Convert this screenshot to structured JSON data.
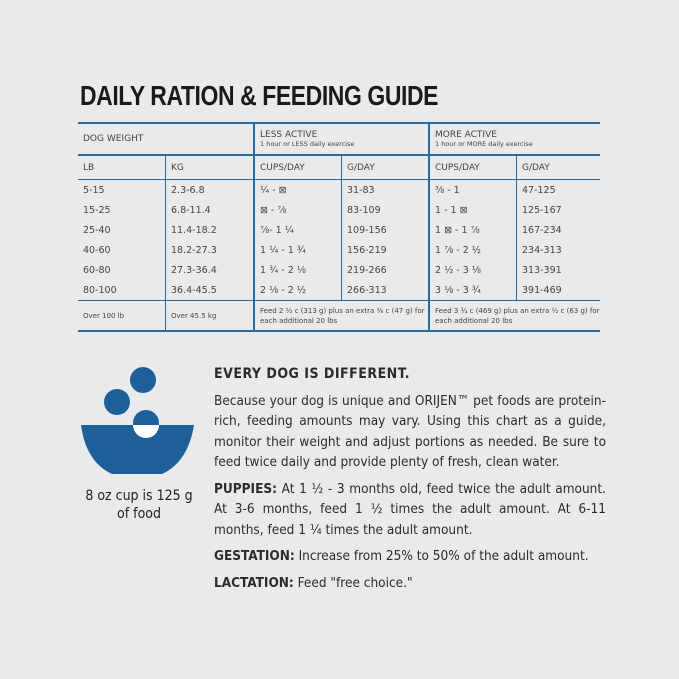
{
  "title": "DAILY RATION & FEEDING GUIDE",
  "table": {
    "dog_weight": "DOG WEIGHT",
    "less_active": "LESS ACTIVE",
    "less_active_sub": "1 hour or LESS daily exercise",
    "more_active": "MORE ACTIVE",
    "more_active_sub": "1 hour or MORE daily exercise",
    "columns": [
      "LB",
      "KG",
      "CUPS/DAY",
      "G/DAY",
      "CUPS/DAY",
      "G/DAY"
    ],
    "rows": [
      [
        "5-15",
        "2.3-6.8",
        "¼ - ⊠",
        "31-83",
        "⅜ - 1",
        "47-125"
      ],
      [
        "15-25",
        "6.8-11.4",
        "⊠ - ⅞",
        "83-109",
        "1 - 1 ⊠",
        "125-167"
      ],
      [
        "25-40",
        "11.4-18.2",
        "⅞- 1 ¼",
        "109-156",
        "1 ⊠ - 1 ⅞",
        "167-234"
      ],
      [
        "40-60",
        "18.2-27.3",
        "1 ¼ - 1 ¾",
        "156-219",
        "1 ⅞ - 2 ½",
        "234-313"
      ],
      [
        "60-80",
        "27.3-36.4",
        "1 ¾ - 2 ⅛",
        "219-266",
        "2 ½ - 3 ⅛",
        "313-391"
      ],
      [
        "80-100",
        "36.4-45.5",
        "2 ⅛ - 2 ½",
        "266-313",
        "3 ⅛ - 3 ¾",
        "391-469"
      ]
    ],
    "footer": [
      "Over 100 lb",
      "Over 45.5 kg",
      "Feed 2 ½ c (313 g) plus an extra ⅜ c (47 g) for each additional 20 lbs",
      "Feed 3 ¾ c (469 g) plus an extra ½ c (63 g) for each additional 20 lbs"
    ]
  },
  "cup_note": "8 oz cup is 125 g of food",
  "icon": "food-bowl-icon",
  "accent": "#1c5f9a",
  "info": {
    "heading": "EVERY DOG IS DIFFERENT.",
    "body": "Because your dog is unique and ORIJEN™ pet foods are protein-rich, feeding amounts may vary. Using this chart as a guide, monitor their weight and adjust portions as needed. Be sure to feed twice daily and provide plenty of fresh, clean water.",
    "puppies_label": "PUPPIES:",
    "puppies": " At 1 ½ - 3 months old, feed twice the adult amount. At 3-6 months, feed 1 ½ times the adult amount. At 6-11 months, feed 1 ¼ times the adult amount.",
    "gestation_label": "GESTATION:",
    "gestation": " Increase from 25% to 50% of the adult amount.",
    "lactation_label": "LACTATION:",
    "lactation": " Feed \"free choice.\""
  }
}
